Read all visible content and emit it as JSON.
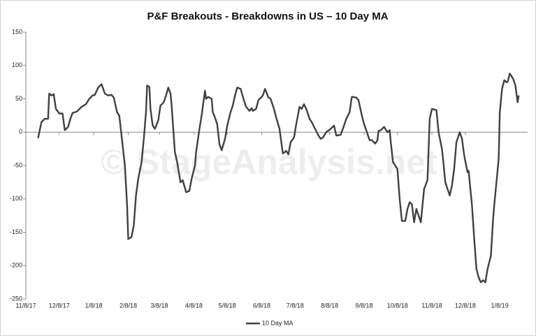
{
  "chart_data": {
    "type": "line",
    "title": "P&F Breakouts - Breakdowns in US – 10 Day MA",
    "watermark": "© StageAnalysis.net",
    "x": [
      "11/19/17",
      "11/22/17",
      "11/25/17",
      "11/28/17",
      "11/29/17",
      "12/1/17",
      "12/3/17",
      "12/5/17",
      "12/8/17",
      "12/11/17",
      "12/13/17",
      "12/16/17",
      "12/18/17",
      "12/20/17",
      "12/24/17",
      "12/28/17",
      "1/1/18",
      "1/4/18",
      "1/7/18",
      "1/9/18",
      "1/12/18",
      "1/15/18",
      "1/18/18",
      "1/21/18",
      "1/24/18",
      "1/26/18",
      "1/29/18",
      "1/31/18",
      "2/1/18",
      "2/3/18",
      "2/5/18",
      "2/6/18",
      "2/7/18",
      "2/8/18",
      "2/11/18",
      "2/13/18",
      "2/15/18",
      "2/17/18",
      "2/20/18",
      "2/22/18",
      "2/24/18",
      "2/25/18",
      "2/27/18",
      "2/28/18",
      "3/2/18",
      "3/4/18",
      "3/7/18",
      "3/9/18",
      "3/12/18",
      "3/14/18",
      "3/16/18",
      "3/18/18",
      "3/19/18",
      "3/22/18",
      "3/24/18",
      "3/27/18",
      "3/29/18",
      "4/1/18",
      "4/4/18",
      "4/6/18",
      "4/9/18",
      "4/10/18",
      "4/13/18",
      "4/15/18",
      "4/18/18",
      "4/19/18",
      "4/21/18",
      "4/24/18",
      "4/25/18",
      "4/27/18",
      "4/29/18",
      "5/1/18",
      "5/3/18",
      "5/6/18",
      "5/8/18",
      "5/11/18",
      "5/13/18",
      "5/15/18",
      "5/17/18",
      "5/20/18",
      "5/23/18",
      "5/25/18",
      "5/28/18",
      "5/30/18",
      "5/31/18",
      "6/3/18",
      "6/5/18",
      "6/9/18",
      "6/11/18",
      "6/14/18",
      "6/16/18",
      "6/19/18",
      "6/21/18",
      "6/24/18",
      "6/26/18",
      "6/27/18",
      "6/30/18",
      "7/2/18",
      "7/4/18",
      "7/7/18",
      "7/9/18",
      "7/12/18",
      "7/14/18",
      "7/16/18",
      "7/18/18",
      "7/21/18",
      "7/23/18",
      "7/26/18",
      "7/29/18",
      "7/31/18",
      "8/2/18",
      "8/5/18",
      "8/9/18",
      "8/12/18",
      "8/14/18",
      "8/18/18",
      "8/21/18",
      "8/23/18",
      "8/26/18",
      "8/28/18",
      "9/1/18",
      "9/3/18",
      "9/6/18",
      "9/8/18",
      "9/11/18",
      "9/13/18",
      "9/15/18",
      "9/18/18",
      "9/20/18",
      "9/21/18",
      "9/23/18",
      "9/26/18",
      "9/29/18",
      "10/1/18",
      "10/2/18",
      "10/4/18",
      "10/8/18",
      "10/10/18",
      "10/12/18",
      "10/15/18",
      "10/17/18",
      "10/19/18",
      "10/21/18",
      "10/23/18",
      "10/25/18",
      "10/27/18",
      "10/29/18",
      "11/1/18",
      "11/4/18",
      "11/6/18",
      "11/8/18",
      "11/12/18",
      "11/14/18",
      "11/17/18",
      "11/18/18",
      "11/20/18",
      "11/24/18",
      "11/26/18",
      "11/28/18",
      "11/30/18",
      "12/3/18",
      "12/5/18",
      "12/7/18",
      "12/10/18",
      "12/11/18",
      "12/14/18",
      "12/16/18",
      "12/18/18",
      "12/20/18",
      "12/22/18",
      "12/24/18",
      "12/26/18",
      "12/28/18",
      "12/31/18",
      "1/2/19",
      "1/3/19",
      "1/5/19",
      "1/7/19",
      "1/8/19",
      "1/10/19",
      "1/12/19",
      "1/14/19",
      "1/15/19",
      "1/17/19",
      "1/20/19",
      "1/22/19",
      "1/24/19",
      "1/25/19"
    ],
    "series": [
      {
        "name": "10 Day MA",
        "color": "#404040",
        "values": [
          -9,
          15,
          20,
          20,
          58,
          55,
          57,
          35,
          28,
          28,
          3,
          8,
          20,
          29,
          31,
          38,
          42,
          50,
          55,
          56,
          67,
          72,
          58,
          55,
          56,
          52,
          30,
          25,
          10,
          -20,
          -50,
          -80,
          -110,
          -160,
          -157,
          -140,
          -95,
          -70,
          -45,
          -10,
          30,
          70,
          68,
          35,
          10,
          5,
          18,
          40,
          45,
          55,
          67,
          58,
          40,
          -30,
          -45,
          -75,
          -72,
          -90,
          -88,
          -70,
          -50,
          -30,
          5,
          25,
          62,
          50,
          53,
          50,
          30,
          22,
          12,
          -18,
          -27,
          -10,
          10,
          30,
          40,
          55,
          67,
          65,
          48,
          38,
          32,
          36,
          32,
          35,
          48,
          55,
          65,
          52,
          50,
          35,
          22,
          5,
          -20,
          -32,
          -28,
          -33,
          -15,
          -8,
          12,
          38,
          35,
          42,
          35,
          20,
          15,
          5,
          -5,
          -10,
          -8,
          0,
          5,
          10,
          -5,
          -4,
          10,
          20,
          30,
          53,
          52,
          48,
          25,
          12,
          -2,
          -12,
          -12,
          -17,
          -12,
          2,
          3,
          8,
          0,
          3,
          -15,
          -45,
          -55,
          -100,
          -133,
          -133,
          -115,
          -105,
          -108,
          -135,
          -115,
          -125,
          -135,
          -85,
          -72,
          20,
          35,
          33,
          0,
          -25,
          -40,
          -75,
          -95,
          -80,
          -55,
          -15,
          0,
          -10,
          -35,
          -60,
          -58,
          -110,
          -160,
          -205,
          -218,
          -225,
          -222,
          -225,
          -205,
          -185,
          -130,
          -110,
          -75,
          -40,
          30,
          65,
          78,
          75,
          75,
          88,
          80,
          70,
          45,
          55
        ]
      }
    ],
    "xlim": [
      "11/8/17",
      "2/2/19"
    ],
    "xticks": [
      "11/8/17",
      "12/8/17",
      "1/8/18",
      "2/8/18",
      "3/8/18",
      "4/8/18",
      "5/8/18",
      "6/8/18",
      "7/8/18",
      "8/8/18",
      "9/8/18",
      "10/8/18",
      "11/8/18",
      "12/8/18",
      "1/8/19"
    ],
    "ylim": [
      -250,
      150
    ],
    "yticks": [
      -250,
      -200,
      -150,
      -100,
      -50,
      0,
      50,
      100,
      150
    ],
    "grid": false,
    "legend": "bottom"
  }
}
